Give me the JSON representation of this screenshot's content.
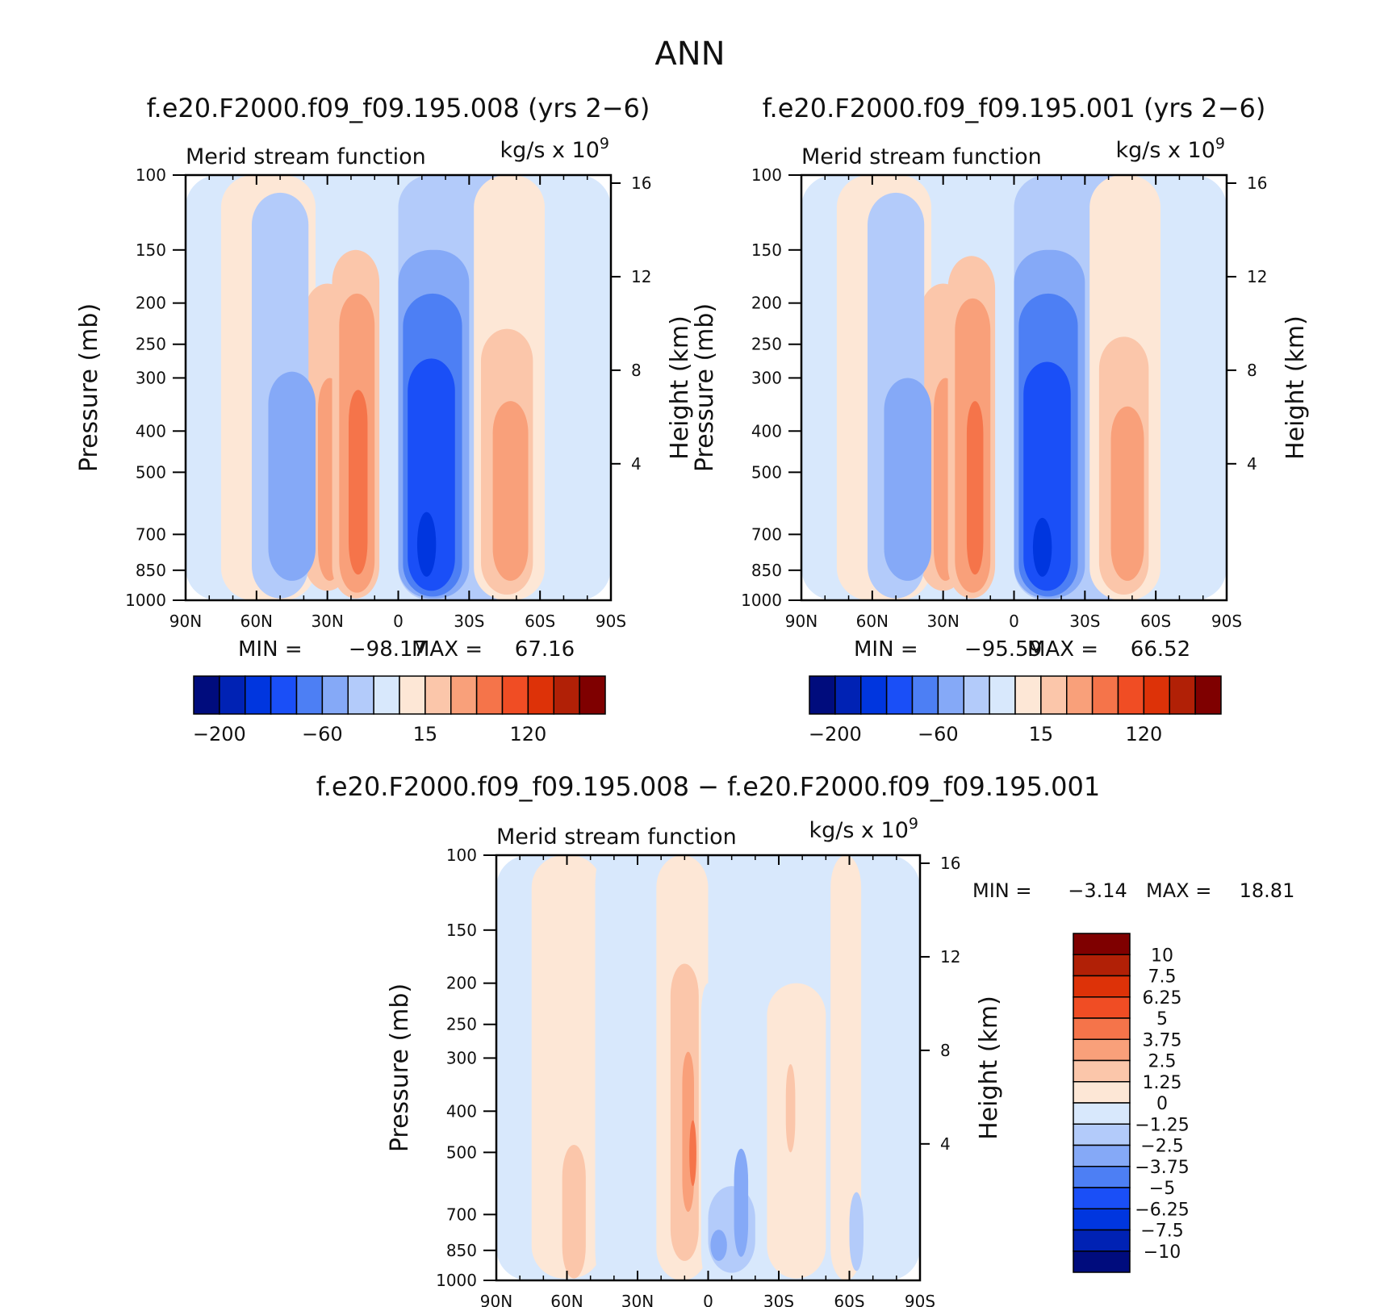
{
  "page_title": "ANN",
  "chart_data": [
    {
      "type": "heatmap",
      "title": "f.e20.F2000.f09_f09.195.008 (yrs 2−6)",
      "subtitle": "Merid stream function",
      "units_text": "kg/s x 10",
      "units_exp": "9",
      "ylabel": "Pressure (mb)",
      "ylabel_right": "Height (km)",
      "x_ticks": [
        "90N",
        "60N",
        "30N",
        "0",
        "30S",
        "60S",
        "90S"
      ],
      "y_ticks": [
        "100",
        "150",
        "200",
        "250",
        "300",
        "400",
        "500",
        "700",
        "850",
        "1000"
      ],
      "y_right_ticks": [
        "16",
        "12",
        "8",
        "4"
      ],
      "min_label": "MIN =",
      "min_value": "−98.17",
      "max_label": "MAX =",
      "max_value": "67.16",
      "colorbar_labels": [
        "−200",
        "−60",
        "15",
        "120"
      ],
      "cells": [
        {
          "lat": [
            -90,
            90
          ],
          "p": [
            100,
            1000
          ],
          "level": 7
        },
        {
          "lat": [
            -75,
            -35
          ],
          "p": [
            100,
            1000
          ],
          "level": 8
        },
        {
          "lat": [
            -40,
            -20
          ],
          "p": [
            180,
            950
          ],
          "level": 9
        },
        {
          "lat": [
            -34,
            -24
          ],
          "p": [
            300,
            900
          ],
          "level": 10
        },
        {
          "lat": [
            -62,
            -38
          ],
          "p": [
            110,
            990
          ],
          "level": 6
        },
        {
          "lat": [
            -55,
            -35
          ],
          "p": [
            290,
            900
          ],
          "level": 5
        },
        {
          "lat": [
            -28,
            -8
          ],
          "p": [
            150,
            990
          ],
          "level": 9
        },
        {
          "lat": [
            -25,
            -10
          ],
          "p": [
            190,
            960
          ],
          "level": 10
        },
        {
          "lat": [
            -21,
            -13
          ],
          "p": [
            320,
            870
          ],
          "level": 11
        },
        {
          "lat": [
            0,
            60
          ],
          "p": [
            100,
            1000
          ],
          "level": 6
        },
        {
          "lat": [
            0,
            30
          ],
          "p": [
            150,
            990
          ],
          "level": 5
        },
        {
          "lat": [
            2,
            27
          ],
          "p": [
            190,
            980
          ],
          "level": 4
        },
        {
          "lat": [
            4,
            24
          ],
          "p": [
            270,
            950
          ],
          "level": 3
        },
        {
          "lat": [
            8,
            16
          ],
          "p": [
            620,
            880
          ],
          "level": 2
        },
        {
          "lat": [
            32,
            62
          ],
          "p": [
            100,
            1000
          ],
          "level": 8
        },
        {
          "lat": [
            35,
            57
          ],
          "p": [
            230,
            970
          ],
          "level": 9
        },
        {
          "lat": [
            40,
            55
          ],
          "p": [
            340,
            900
          ],
          "level": 10
        }
      ]
    },
    {
      "type": "heatmap",
      "title": "f.e20.F2000.f09_f09.195.001 (yrs 2−6)",
      "subtitle": "Merid stream function",
      "units_text": "kg/s x 10",
      "units_exp": "9",
      "ylabel": "Pressure (mb)",
      "ylabel_right": "Height (km)",
      "x_ticks": [
        "90N",
        "60N",
        "30N",
        "0",
        "30S",
        "60S",
        "90S"
      ],
      "y_ticks": [
        "100",
        "150",
        "200",
        "250",
        "300",
        "400",
        "500",
        "700",
        "850",
        "1000"
      ],
      "y_right_ticks": [
        "16",
        "12",
        "8",
        "4"
      ],
      "min_label": "MIN =",
      "min_value": "−95.59",
      "max_label": "MAX =",
      "max_value": "66.52",
      "colorbar_labels": [
        "−200",
        "−60",
        "15",
        "120"
      ],
      "cells": [
        {
          "lat": [
            -90,
            90
          ],
          "p": [
            100,
            1000
          ],
          "level": 7
        },
        {
          "lat": [
            -75,
            -35
          ],
          "p": [
            100,
            1000
          ],
          "level": 8
        },
        {
          "lat": [
            -40,
            -20
          ],
          "p": [
            180,
            950
          ],
          "level": 9
        },
        {
          "lat": [
            -34,
            -24
          ],
          "p": [
            300,
            900
          ],
          "level": 10
        },
        {
          "lat": [
            -62,
            -38
          ],
          "p": [
            110,
            990
          ],
          "level": 6
        },
        {
          "lat": [
            -55,
            -35
          ],
          "p": [
            300,
            900
          ],
          "level": 5
        },
        {
          "lat": [
            -28,
            -8
          ],
          "p": [
            155,
            990
          ],
          "level": 9
        },
        {
          "lat": [
            -25,
            -10
          ],
          "p": [
            195,
            960
          ],
          "level": 10
        },
        {
          "lat": [
            -20,
            -13
          ],
          "p": [
            340,
            870
          ],
          "level": 11
        },
        {
          "lat": [
            0,
            60
          ],
          "p": [
            100,
            1000
          ],
          "level": 6
        },
        {
          "lat": [
            0,
            30
          ],
          "p": [
            150,
            990
          ],
          "level": 5
        },
        {
          "lat": [
            2,
            27
          ],
          "p": [
            190,
            980
          ],
          "level": 4
        },
        {
          "lat": [
            4,
            24
          ],
          "p": [
            275,
            950
          ],
          "level": 3
        },
        {
          "lat": [
            8,
            16
          ],
          "p": [
            640,
            880
          ],
          "level": 2
        },
        {
          "lat": [
            32,
            62
          ],
          "p": [
            100,
            1000
          ],
          "level": 8
        },
        {
          "lat": [
            36,
            57
          ],
          "p": [
            240,
            970
          ],
          "level": 9
        },
        {
          "lat": [
            41,
            55
          ],
          "p": [
            350,
            900
          ],
          "level": 10
        }
      ]
    },
    {
      "type": "heatmap",
      "title": "f.e20.F2000.f09_f09.195.008 − f.e20.F2000.f09_f09.195.001",
      "subtitle": "Merid stream function",
      "units_text": "kg/s x 10",
      "units_exp": "9",
      "ylabel": "Pressure (mb)",
      "ylabel_right": "Height (km)",
      "x_ticks": [
        "90N",
        "60N",
        "30N",
        "0",
        "30S",
        "60S",
        "90S"
      ],
      "y_ticks": [
        "100",
        "150",
        "200",
        "250",
        "300",
        "400",
        "500",
        "700",
        "850",
        "1000"
      ],
      "y_right_ticks": [
        "16",
        "12",
        "8",
        "4"
      ],
      "min_label": "MIN =",
      "min_value": "−3.14",
      "max_label": "MAX =",
      "max_value": "18.81",
      "colorbar_labels": [
        "10",
        "7.5",
        "6.25",
        "5",
        "3.75",
        "2.5",
        "1.25",
        "0",
        "−1.25",
        "−2.5",
        "−3.75",
        "−5",
        "−6.25",
        "−7.5",
        "−10"
      ],
      "cells": [
        {
          "lat": [
            -90,
            90
          ],
          "p": [
            100,
            1000
          ],
          "level": 7
        },
        {
          "lat": [
            -75,
            -45
          ],
          "p": [
            100,
            990
          ],
          "level": 8
        },
        {
          "lat": [
            -62,
            -52
          ],
          "p": [
            480,
            990
          ],
          "level": 9
        },
        {
          "lat": [
            -48,
            -42
          ],
          "p": [
            100,
            1000
          ],
          "level": 7
        },
        {
          "lat": [
            -22,
            0
          ],
          "p": [
            100,
            1000
          ],
          "level": 8
        },
        {
          "lat": [
            -16,
            -4
          ],
          "p": [
            180,
            900
          ],
          "level": 9
        },
        {
          "lat": [
            -11,
            -6
          ],
          "p": [
            290,
            690
          ],
          "level": 10
        },
        {
          "lat": [
            -8,
            -5
          ],
          "p": [
            420,
            600
          ],
          "level": 11
        },
        {
          "lat": [
            -3,
            3
          ],
          "p": [
            200,
            1000
          ],
          "level": 7
        },
        {
          "lat": [
            0,
            28
          ],
          "p": [
            500,
            990
          ],
          "level": 7
        },
        {
          "lat": [
            8,
            18
          ],
          "p": [
            100,
            300
          ],
          "level": 7
        },
        {
          "lat": [
            0,
            20
          ],
          "p": [
            600,
            960
          ],
          "level": 6
        },
        {
          "lat": [
            11,
            17
          ],
          "p": [
            490,
            880
          ],
          "level": 5
        },
        {
          "lat": [
            1,
            8
          ],
          "p": [
            760,
            900
          ],
          "level": 5
        },
        {
          "lat": [
            25,
            50
          ],
          "p": [
            200,
            990
          ],
          "level": 8
        },
        {
          "lat": [
            33,
            37
          ],
          "p": [
            310,
            500
          ],
          "level": 9
        },
        {
          "lat": [
            52,
            65
          ],
          "p": [
            100,
            1000
          ],
          "level": 8
        },
        {
          "lat": [
            60,
            66
          ],
          "p": [
            620,
            950
          ],
          "level": 6
        }
      ]
    }
  ],
  "colorbar_colors": [
    "#000c7d",
    "#0022b4",
    "#0036df",
    "#1a4ff7",
    "#4d7ff4",
    "#85a9f7",
    "#b3cbfa",
    "#d8e8fc",
    "#fde7d6",
    "#fbc6aa",
    "#f9a07a",
    "#f5744a",
    "#f04d24",
    "#dd3208",
    "#b12006",
    "#7f0000"
  ]
}
